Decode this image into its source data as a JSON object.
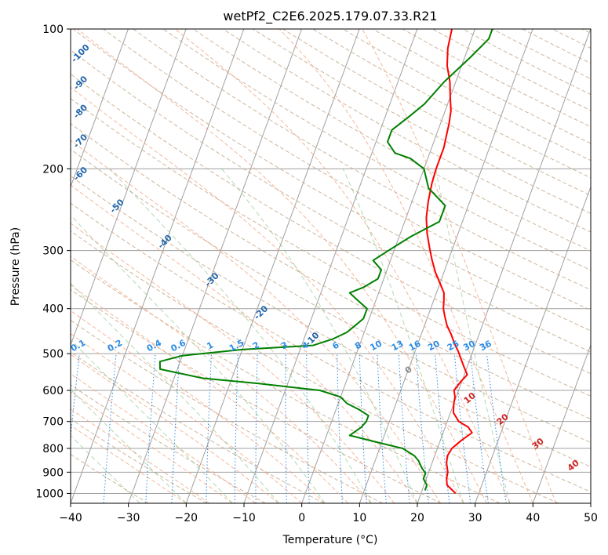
{
  "chart_data": {
    "type": "line",
    "title": "wetPf2_C2E6.2025.179.07.33.R21",
    "xlabel": "Temperature (°C)",
    "ylabel": "Pressure (hPa)",
    "xlim": [
      -40,
      50
    ],
    "ylim": [
      1050,
      100
    ],
    "y_scale": "log",
    "grid": true,
    "x_ticks": [
      -40,
      -30,
      -20,
      -10,
      0,
      10,
      20,
      30,
      40,
      50
    ],
    "y_ticks": [
      100,
      200,
      300,
      400,
      500,
      600,
      700,
      800,
      900,
      1000
    ],
    "series": [
      {
        "name": "",
        "role": "temperature",
        "color": "#ff0000",
        "points": [
          [
            26,
            1000
          ],
          [
            24,
            960
          ],
          [
            23.5,
            930
          ],
          [
            23.3,
            900
          ],
          [
            22.5,
            860
          ],
          [
            22.2,
            830
          ],
          [
            22.5,
            800
          ],
          [
            23.6,
            770
          ],
          [
            25,
            740
          ],
          [
            24,
            720
          ],
          [
            22,
            700
          ],
          [
            20.5,
            670
          ],
          [
            20,
            640
          ],
          [
            19.8,
            620
          ],
          [
            19.2,
            600
          ],
          [
            19.8,
            575
          ],
          [
            20.5,
            555
          ],
          [
            19.5,
            535
          ],
          [
            18.5,
            515
          ],
          [
            17.5,
            495
          ],
          [
            16.3,
            475
          ],
          [
            15.2,
            455
          ],
          [
            13.9,
            435
          ],
          [
            12.9,
            415
          ],
          [
            12.2,
            400
          ],
          [
            11.8,
            385
          ],
          [
            11.3,
            370
          ],
          [
            10.2,
            355
          ],
          [
            8.6,
            335
          ],
          [
            7.2,
            315
          ],
          [
            5.9,
            295
          ],
          [
            4.6,
            275
          ],
          [
            3.5,
            255
          ],
          [
            2.8,
            235
          ],
          [
            2.3,
            215
          ],
          [
            2.1,
            200
          ],
          [
            2.1,
            190
          ],
          [
            2.1,
            180
          ],
          [
            1.8,
            170
          ],
          [
            1.5,
            160
          ],
          [
            1.0,
            150
          ],
          [
            0,
            140
          ],
          [
            -1,
            130
          ],
          [
            -2.5,
            120
          ],
          [
            -3.5,
            110
          ],
          [
            -4,
            100
          ]
        ]
      },
      {
        "name": "",
        "role": "dewpoint",
        "color": "#008000",
        "points": [
          [
            20.5,
            985
          ],
          [
            20.5,
            960
          ],
          [
            19.5,
            930
          ],
          [
            19.5,
            905
          ],
          [
            18.5,
            880
          ],
          [
            17.5,
            850
          ],
          [
            16.5,
            830
          ],
          [
            14,
            800
          ],
          [
            10,
            780
          ],
          [
            7,
            765
          ],
          [
            4,
            750
          ],
          [
            5.5,
            720
          ],
          [
            6,
            700
          ],
          [
            6,
            680
          ],
          [
            4,
            660
          ],
          [
            1.5,
            640
          ],
          [
            0,
            620
          ],
          [
            -4,
            600
          ],
          [
            -15,
            580
          ],
          [
            -25,
            565
          ],
          [
            -33,
            540
          ],
          [
            -33.5,
            520
          ],
          [
            -30,
            505
          ],
          [
            -20,
            490
          ],
          [
            -8,
            480
          ],
          [
            -5,
            465
          ],
          [
            -3,
            450
          ],
          [
            -2,
            435
          ],
          [
            -1,
            420
          ],
          [
            -1,
            400
          ],
          [
            -3,
            385
          ],
          [
            -5,
            370
          ],
          [
            -3,
            360
          ],
          [
            -1,
            345
          ],
          [
            -1,
            330
          ],
          [
            -3,
            315
          ],
          [
            -1,
            300
          ],
          [
            2,
            280
          ],
          [
            6,
            260
          ],
          [
            6,
            240
          ],
          [
            2,
            220
          ],
          [
            0,
            200
          ],
          [
            -3,
            190
          ],
          [
            -6,
            185
          ],
          [
            -8,
            175
          ],
          [
            -8,
            165
          ],
          [
            -6,
            155
          ],
          [
            -4,
            145
          ],
          [
            -2,
            130
          ],
          [
            1,
            115
          ],
          [
            3,
            105
          ],
          [
            3,
            100
          ]
        ]
      }
    ],
    "reference_lines": {
      "dry_adiabats_c": [
        -100,
        -90,
        -80,
        -70,
        -60,
        -50,
        -40,
        -30,
        -20,
        -10
      ],
      "moist_adiabats_c": [
        0,
        10,
        20,
        30,
        40
      ],
      "mixing_ratios_gkg": [
        "0.1",
        "0.2",
        "0.4",
        "0.6",
        "1",
        "1.5",
        "2",
        "3",
        "4",
        "6",
        "8",
        "10",
        "13",
        "16",
        "20",
        "25",
        "30",
        "36"
      ],
      "dry_adiabat_color": "#2266aa",
      "moist_adiabat_color": "#cc2222",
      "mixing_ratio_color": "#2b8ce6",
      "isotherm_color": "#a0a0a0",
      "zero_label_color": "#888888"
    }
  }
}
